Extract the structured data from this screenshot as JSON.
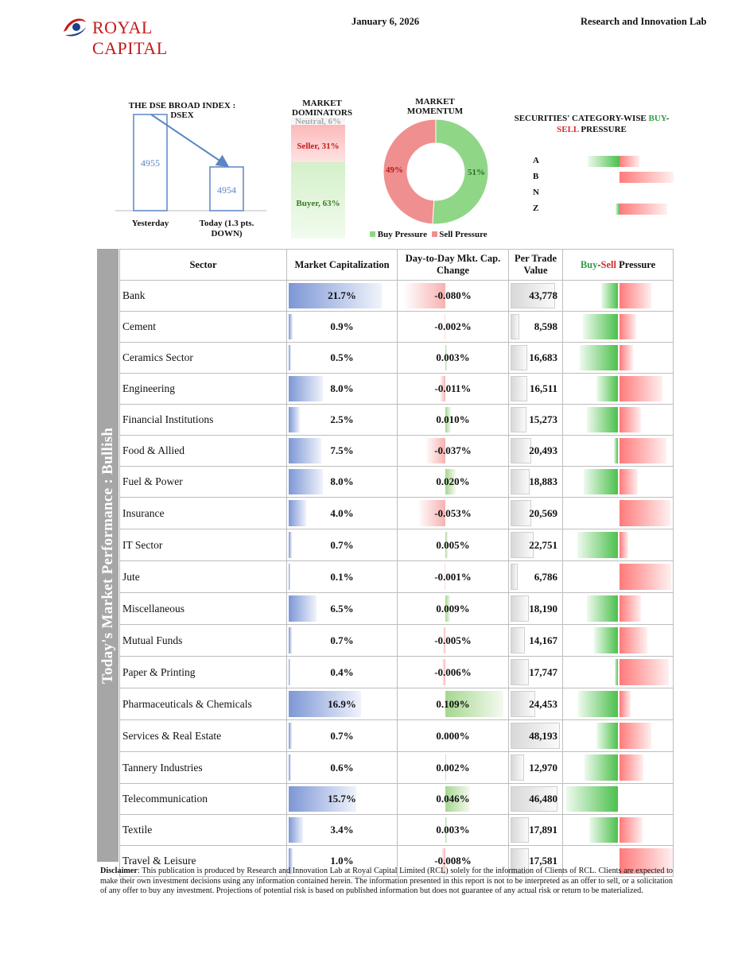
{
  "header": {
    "brand": "ROYAL CAPITAL",
    "date": "January 6, 2026",
    "department": "Research and Innovation Lab"
  },
  "dsex": {
    "title": "THE DSE BROAD INDEX : DSEX",
    "yesterday_value": "4955",
    "today_value": "4954",
    "yesterday_label": "Yesterday",
    "today_label": "Today (1.3 pts. DOWN)"
  },
  "dominators": {
    "title": "MARKET DOMINATORS",
    "neutral": "Neutral, 6%",
    "seller": "Seller, 31%",
    "buyer": "Buyer, 63%",
    "neutral_pct": 6,
    "seller_pct": 31,
    "buyer_pct": 63
  },
  "momentum": {
    "title": "MARKET MOMENTUM",
    "buy_pct": 51,
    "sell_pct": 49,
    "buy_label": "51%",
    "sell_label": "49%",
    "legend_buy": "Buy Pressure",
    "legend_sell": "Sell Pressure"
  },
  "category_pressure": {
    "title_part1": "SECURITIES' CATEGORY-WISE ",
    "title_buy": "BUY",
    "title_dash": "-",
    "title_sell": "SELL",
    "title_part2": " PRESSURE",
    "rows": [
      {
        "cat": "A",
        "buy": 0.4,
        "sell": 0.25
      },
      {
        "cat": "B",
        "buy": 0.0,
        "sell": 0.68
      },
      {
        "cat": "N",
        "buy": 0.0,
        "sell": 0.0
      },
      {
        "cat": "Z",
        "buy": 0.05,
        "sell": 0.6
      }
    ]
  },
  "sidebar_label": "Today's Market Performance : Bullish",
  "table": {
    "headers": {
      "sector": "Sector",
      "market_cap": "Market Capitalization",
      "change": "Day-to-Day Mkt. Cap. Change",
      "per_trade": "Per Trade Value",
      "pressure_buy": "Buy",
      "pressure_dash": "-",
      "pressure_sell": "Sell",
      "pressure_rest": " Pressure"
    },
    "rows": [
      {
        "sector": "Bank",
        "mcap": "21.7%",
        "mcap_v": 21.7,
        "chg": "-0.080%",
        "chg_v": -0.08,
        "ptv": "43,778",
        "ptv_v": 43778,
        "buy": 0.21,
        "sell": 0.4
      },
      {
        "sector": "Cement",
        "mcap": "0.9%",
        "mcap_v": 0.9,
        "chg": "-0.002%",
        "chg_v": -0.002,
        "ptv": "8,598",
        "ptv_v": 8598,
        "buy": 0.44,
        "sell": 0.21
      },
      {
        "sector": "Ceramics Sector",
        "mcap": "0.5%",
        "mcap_v": 0.5,
        "chg": "0.003%",
        "chg_v": 0.003,
        "ptv": "16,683",
        "ptv_v": 16683,
        "buy": 0.48,
        "sell": 0.17
      },
      {
        "sector": "Engineering",
        "mcap": "8.0%",
        "mcap_v": 8.0,
        "chg": "-0.011%",
        "chg_v": -0.011,
        "ptv": "16,511",
        "ptv_v": 16511,
        "buy": 0.27,
        "sell": 0.54
      },
      {
        "sector": "Financial Institutions",
        "mcap": "2.5%",
        "mcap_v": 2.5,
        "chg": "0.010%",
        "chg_v": 0.01,
        "ptv": "15,273",
        "ptv_v": 15273,
        "buy": 0.39,
        "sell": 0.27
      },
      {
        "sector": "Food & Allied",
        "mcap": "7.5%",
        "mcap_v": 7.5,
        "chg": "-0.037%",
        "chg_v": -0.037,
        "ptv": "20,493",
        "ptv_v": 20493,
        "buy": 0.05,
        "sell": 0.59
      },
      {
        "sector": "Fuel & Power",
        "mcap": "8.0%",
        "mcap_v": 8.0,
        "chg": "0.020%",
        "chg_v": 0.02,
        "ptv": "18,883",
        "ptv_v": 18883,
        "buy": 0.43,
        "sell": 0.23
      },
      {
        "sector": "Insurance",
        "mcap": "4.0%",
        "mcap_v": 4.0,
        "chg": "-0.053%",
        "chg_v": -0.053,
        "ptv": "20,569",
        "ptv_v": 20569,
        "buy": 0.0,
        "sell": 0.64
      },
      {
        "sector": "IT Sector",
        "mcap": "0.7%",
        "mcap_v": 0.7,
        "chg": "0.005%",
        "chg_v": 0.005,
        "ptv": "22,751",
        "ptv_v": 22751,
        "buy": 0.51,
        "sell": 0.11
      },
      {
        "sector": "Jute",
        "mcap": "0.1%",
        "mcap_v": 0.1,
        "chg": "-0.001%",
        "chg_v": -0.001,
        "ptv": "6,786",
        "ptv_v": 6786,
        "buy": 0.0,
        "sell": 0.65
      },
      {
        "sector": "Miscellaneous",
        "mcap": "6.5%",
        "mcap_v": 6.5,
        "chg": "0.009%",
        "chg_v": 0.009,
        "ptv": "18,190",
        "ptv_v": 18190,
        "buy": 0.39,
        "sell": 0.27
      },
      {
        "sector": "Mutual Funds",
        "mcap": "0.7%",
        "mcap_v": 0.7,
        "chg": "-0.005%",
        "chg_v": -0.005,
        "ptv": "14,167",
        "ptv_v": 14167,
        "buy": 0.3,
        "sell": 0.35
      },
      {
        "sector": "Paper & Printing",
        "mcap": "0.4%",
        "mcap_v": 0.4,
        "chg": "-0.006%",
        "chg_v": -0.006,
        "ptv": "17,747",
        "ptv_v": 17747,
        "buy": 0.04,
        "sell": 0.62
      },
      {
        "sector": "Pharmaceuticals & Chemicals",
        "mcap": "16.9%",
        "mcap_v": 16.9,
        "chg": "0.109%",
        "chg_v": 0.109,
        "ptv": "24,453",
        "ptv_v": 24453,
        "buy": 0.5,
        "sell": 0.14
      },
      {
        "sector": "Services & Real Estate",
        "mcap": "0.7%",
        "mcap_v": 0.7,
        "chg": "0.000%",
        "chg_v": 0.0,
        "ptv": "48,193",
        "ptv_v": 48193,
        "buy": 0.27,
        "sell": 0.4
      },
      {
        "sector": "Tannery Industries",
        "mcap": "0.6%",
        "mcap_v": 0.6,
        "chg": "0.002%",
        "chg_v": 0.002,
        "ptv": "12,970",
        "ptv_v": 12970,
        "buy": 0.42,
        "sell": 0.3
      },
      {
        "sector": "Telecommunication",
        "mcap": "15.7%",
        "mcap_v": 15.7,
        "chg": "0.046%",
        "chg_v": 0.046,
        "ptv": "46,480",
        "ptv_v": 46480,
        "buy": 0.65,
        "sell": 0.0
      },
      {
        "sector": "Textile",
        "mcap": "3.4%",
        "mcap_v": 3.4,
        "chg": "0.003%",
        "chg_v": 0.003,
        "ptv": "17,891",
        "ptv_v": 17891,
        "buy": 0.36,
        "sell": 0.29
      },
      {
        "sector": "Travel & Leisure",
        "mcap": "1.0%",
        "mcap_v": 1.0,
        "chg": "-0.008%",
        "chg_v": -0.008,
        "ptv": "17,581",
        "ptv_v": 17581,
        "buy": 0.0,
        "sell": 0.67
      }
    ]
  },
  "disclaimer": {
    "label": "Disclaimer",
    "text": ": This publication is produced by Research and Innovation Lab at Royal Capital Limited (RCL) solely for the information of Clients of RCL. Clients are expected to make their own investment decisions using any information contained herein. The information presented in this report is not to be interpreted as an offer to sell, or a solicitation of any offer to buy any investment. Projections of potential risk is based on published information but does not guarantee of any actual risk or return to be materialized."
  },
  "colors": {
    "brand_red": "#c41a1a",
    "buy_green": "#2ea043",
    "sell_red": "#d92b2b",
    "dsex_blue": "#5b86c5"
  }
}
